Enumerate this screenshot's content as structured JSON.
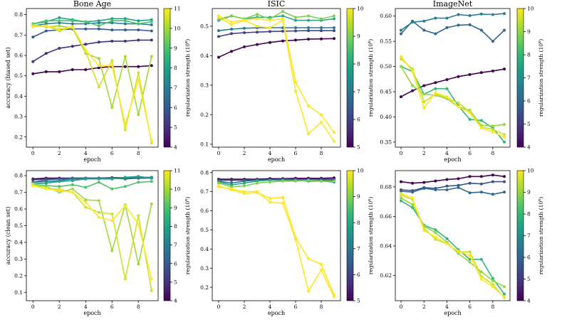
{
  "colormap": [
    "#440154",
    "#482878",
    "#3e4989",
    "#31688e",
    "#26828e",
    "#1f9e89",
    "#35b779",
    "#6ece58",
    "#b5de2b",
    "#fde725"
  ],
  "chart_data": [
    {
      "type": "line",
      "title": "Bone Age",
      "xlabel": "epoch",
      "ylabel": "accuracy (biased set)",
      "ylim": [
        0.15,
        0.83
      ],
      "yticks": [
        0.2,
        0.3,
        0.4,
        0.5,
        0.6,
        0.7,
        0.8
      ],
      "ytick_labels": [
        "0.2",
        "0.3",
        "0.4",
        "0.5",
        "0.6",
        "0.7",
        "0.8"
      ],
      "xlim": [
        -0.5,
        9.5
      ],
      "xticks": [
        0,
        2,
        4,
        6,
        8
      ],
      "xtick_labels": [
        "0",
        "2",
        "4",
        "6",
        "8"
      ],
      "colorbar": {
        "label": "regularization strength (10^x)",
        "label_main": "regularization strength (10",
        "label_sup": "x",
        "range": [
          4,
          11
        ],
        "ticks": [
          4,
          5,
          6,
          7,
          8,
          9,
          10,
          11
        ],
        "tick_labels": [
          "4",
          "5",
          "6",
          "7",
          "8",
          "9",
          "10",
          "11"
        ]
      },
      "x": [
        0,
        1,
        2,
        3,
        4,
        5,
        6,
        7,
        8,
        9
      ],
      "series": [
        {
          "strength": 4,
          "values": [
            0.51,
            0.52,
            0.52,
            0.53,
            0.53,
            0.54,
            0.545,
            0.545,
            0.545,
            0.55
          ]
        },
        {
          "strength": 5,
          "values": [
            0.57,
            0.61,
            0.635,
            0.645,
            0.655,
            0.665,
            0.67,
            0.67,
            0.675,
            0.675
          ]
        },
        {
          "strength": 6,
          "values": [
            0.69,
            0.72,
            0.725,
            0.73,
            0.73,
            0.73,
            0.725,
            0.725,
            0.725,
            0.72
          ]
        },
        {
          "strength": 7,
          "values": [
            0.745,
            0.755,
            0.76,
            0.755,
            0.755,
            0.76,
            0.76,
            0.755,
            0.755,
            0.75
          ]
        },
        {
          "strength": 8,
          "values": [
            0.755,
            0.765,
            0.785,
            0.775,
            0.765,
            0.77,
            0.78,
            0.78,
            0.77,
            0.775
          ]
        },
        {
          "strength": 9,
          "values": [
            0.755,
            0.77,
            0.77,
            0.77,
            0.765,
            0.745,
            0.77,
            0.77,
            0.755,
            0.765
          ]
        },
        {
          "strength": 10,
          "values": [
            0.75,
            0.74,
            0.745,
            0.735,
            0.61,
            0.585,
            0.345,
            0.595,
            0.31,
            0.595
          ]
        },
        {
          "strength": 10.5,
          "values": [
            0.745,
            0.745,
            0.72,
            0.74,
            0.62,
            0.445,
            0.575,
            0.235,
            0.515,
            0.17
          ]
        },
        {
          "strength": 11,
          "values": [
            0.74,
            0.745,
            0.73,
            0.74,
            0.625,
            0.55,
            0.55,
            0.26,
            0.48,
            0.18
          ]
        }
      ]
    },
    {
      "type": "line",
      "title": "ISIC",
      "xlabel": "epoch",
      "ylabel": "",
      "ylim": [
        0.09,
        0.56
      ],
      "yticks": [
        0.1,
        0.2,
        0.3,
        0.4,
        0.5
      ],
      "ytick_labels": [
        "0.1",
        "0.2",
        "0.3",
        "0.4",
        "0.5"
      ],
      "xlim": [
        -0.5,
        9.5
      ],
      "xticks": [
        0,
        2,
        4,
        6,
        8
      ],
      "xtick_labels": [
        "0",
        "2",
        "4",
        "6",
        "8"
      ],
      "colorbar": {
        "label": "regularization strength (10^x)",
        "label_main": "regularization strength (10",
        "label_sup": "x",
        "range": [
          5,
          10
        ],
        "ticks": [
          5,
          6,
          7,
          8,
          9,
          10
        ],
        "tick_labels": [
          "5",
          "6",
          "7",
          "8",
          "9",
          "10"
        ]
      },
      "x": [
        0,
        1,
        2,
        3,
        4,
        5,
        6,
        7,
        8,
        9
      ],
      "series": [
        {
          "strength": 5,
          "values": [
            0.395,
            0.415,
            0.43,
            0.438,
            0.445,
            0.45,
            0.453,
            0.456,
            0.457,
            0.458
          ]
        },
        {
          "strength": 6,
          "values": [
            0.465,
            0.475,
            0.478,
            0.48,
            0.482,
            0.483,
            0.484,
            0.485,
            0.485,
            0.485
          ]
        },
        {
          "strength": 7,
          "values": [
            0.485,
            0.49,
            0.493,
            0.495,
            0.495,
            0.495,
            0.495,
            0.495,
            0.495,
            0.495
          ]
        },
        {
          "strength": 8,
          "values": [
            0.52,
            0.535,
            0.525,
            0.53,
            0.53,
            0.535,
            0.52,
            0.52,
            0.52,
            0.525
          ]
        },
        {
          "strength": 9,
          "values": [
            0.525,
            0.535,
            0.525,
            0.54,
            0.525,
            0.55,
            0.53,
            0.535,
            0.525,
            0.535
          ]
        },
        {
          "strength": 10,
          "values": [
            0.535,
            0.515,
            0.52,
            0.525,
            0.52,
            0.525,
            0.31,
            0.23,
            0.2,
            0.14
          ]
        },
        {
          "strength": 10,
          "values": [
            0.53,
            0.505,
            0.52,
            0.5,
            0.495,
            0.52,
            0.28,
            0.135,
            0.175,
            0.11
          ]
        }
      ]
    },
    {
      "type": "line",
      "title": "ImageNet",
      "xlabel": "epoch",
      "ylabel": "",
      "ylim": [
        0.34,
        0.615
      ],
      "yticks": [
        0.35,
        0.4,
        0.45,
        0.5,
        0.55,
        0.6
      ],
      "ytick_labels": [
        "0.35",
        "0.40",
        "0.45",
        "0.50",
        "0.55",
        "0.60"
      ],
      "xlim": [
        -0.5,
        9.5
      ],
      "xticks": [
        0,
        2,
        4,
        6,
        8
      ],
      "xtick_labels": [
        "0",
        "2",
        "4",
        "6",
        "8"
      ],
      "colorbar": {
        "label": "regularization strength (10^x)",
        "label_main": "regularization strength (10",
        "label_sup": "x",
        "range": [
          4,
          10
        ],
        "ticks": [
          4,
          5,
          6,
          7,
          8,
          9,
          10
        ],
        "tick_labels": [
          "4",
          "5",
          "6",
          "7",
          "8",
          "9",
          "10"
        ]
      },
      "x": [
        0,
        1,
        2,
        3,
        4,
        5,
        6,
        7,
        8,
        9
      ],
      "series": [
        {
          "strength": 4,
          "values": [
            0.44,
            0.452,
            0.462,
            0.468,
            0.474,
            0.48,
            0.484,
            0.488,
            0.491,
            0.495
          ]
        },
        {
          "strength": 6,
          "values": [
            0.565,
            0.59,
            0.572,
            0.565,
            0.577,
            0.582,
            0.583,
            0.572,
            0.55,
            0.572
          ]
        },
        {
          "strength": 6.5,
          "values": [
            0.572,
            0.588,
            0.59,
            0.596,
            0.596,
            0.603,
            0.601,
            0.604,
            0.603,
            0.605
          ]
        },
        {
          "strength": 8,
          "values": [
            0.5,
            0.49,
            0.445,
            0.456,
            0.456,
            0.422,
            0.395,
            0.393,
            0.378,
            0.35
          ]
        },
        {
          "strength": 9,
          "values": [
            0.5,
            0.462,
            0.445,
            0.443,
            0.436,
            0.42,
            0.413,
            0.383,
            0.382,
            0.385
          ]
        },
        {
          "strength": 9.5,
          "values": [
            0.515,
            0.495,
            0.43,
            0.445,
            0.438,
            0.428,
            0.41,
            0.38,
            0.375,
            0.365
          ]
        },
        {
          "strength": 10,
          "values": [
            0.52,
            0.49,
            0.418,
            0.448,
            0.44,
            0.42,
            0.408,
            0.378,
            0.37,
            0.36
          ]
        }
      ]
    },
    {
      "type": "line",
      "title": "",
      "xlabel": "epoch",
      "ylabel": "accuracy (clean set)",
      "ylim": [
        0.05,
        0.83
      ],
      "yticks": [
        0.1,
        0.2,
        0.3,
        0.4,
        0.5,
        0.6,
        0.7,
        0.8
      ],
      "ytick_labels": [
        "0.1",
        "0.2",
        "0.3",
        "0.4",
        "0.5",
        "0.6",
        "0.7",
        "0.8"
      ],
      "xlim": [
        -0.5,
        9.5
      ],
      "xticks": [
        0,
        2,
        4,
        6,
        8
      ],
      "xtick_labels": [
        "0",
        "2",
        "4",
        "6",
        "8"
      ],
      "colorbar": {
        "label": "regularization strength (10^x)",
        "label_main": "regularization strength (10",
        "label_sup": "x",
        "range": [
          4,
          11
        ],
        "ticks": [
          4,
          5,
          6,
          7,
          8,
          9,
          10,
          11
        ],
        "tick_labels": [
          "4",
          "5",
          "6",
          "7",
          "8",
          "9",
          "10",
          "11"
        ]
      },
      "x": [
        0,
        1,
        2,
        3,
        4,
        5,
        6,
        7,
        8,
        9
      ],
      "series": [
        {
          "strength": 4,
          "values": [
            0.78,
            0.785,
            0.785,
            0.785,
            0.785,
            0.785,
            0.788,
            0.788,
            0.788,
            0.788
          ]
        },
        {
          "strength": 5,
          "values": [
            0.775,
            0.78,
            0.78,
            0.782,
            0.782,
            0.785,
            0.785,
            0.785,
            0.785,
            0.787
          ]
        },
        {
          "strength": 6,
          "values": [
            0.76,
            0.775,
            0.78,
            0.785,
            0.785,
            0.785,
            0.785,
            0.78,
            0.785,
            0.785
          ]
        },
        {
          "strength": 7,
          "values": [
            0.76,
            0.765,
            0.77,
            0.78,
            0.78,
            0.782,
            0.785,
            0.785,
            0.79,
            0.79
          ]
        },
        {
          "strength": 8,
          "values": [
            0.75,
            0.755,
            0.765,
            0.77,
            0.78,
            0.78,
            0.78,
            0.79,
            0.795,
            0.785
          ]
        },
        {
          "strength": 9,
          "values": [
            0.745,
            0.74,
            0.735,
            0.745,
            0.73,
            0.76,
            0.72,
            0.735,
            0.76,
            0.765
          ]
        },
        {
          "strength": 10,
          "values": [
            0.745,
            0.735,
            0.7,
            0.72,
            0.655,
            0.65,
            0.35,
            0.625,
            0.27,
            0.63
          ]
        },
        {
          "strength": 10.5,
          "values": [
            0.75,
            0.72,
            0.72,
            0.7,
            0.61,
            0.58,
            0.57,
            0.18,
            0.56,
            0.11
          ]
        },
        {
          "strength": 11,
          "values": [
            0.74,
            0.72,
            0.71,
            0.7,
            0.64,
            0.55,
            0.53,
            0.62,
            0.51,
            0.18
          ]
        }
      ]
    },
    {
      "type": "line",
      "title": "",
      "xlabel": "epoch",
      "ylabel": "",
      "ylim": [
        0.13,
        0.81
      ],
      "yticks": [
        0.2,
        0.3,
        0.4,
        0.5,
        0.6,
        0.7,
        0.8
      ],
      "ytick_labels": [
        "0.2",
        "0.3",
        "0.4",
        "0.5",
        "0.6",
        "0.7",
        "0.8"
      ],
      "xlim": [
        -0.5,
        9.5
      ],
      "xticks": [
        0,
        2,
        4,
        6,
        8
      ],
      "xtick_labels": [
        "0",
        "2",
        "4",
        "6",
        "8"
      ],
      "colorbar": {
        "label": "regularization strength (10^x)",
        "label_main": "regularization strength (10",
        "label_sup": "x",
        "range": [
          5,
          10
        ],
        "ticks": [
          5,
          6,
          7,
          8,
          9,
          10
        ],
        "tick_labels": [
          "5",
          "6",
          "7",
          "8",
          "9",
          "10"
        ]
      },
      "x": [
        0,
        1,
        2,
        3,
        4,
        5,
        6,
        7,
        8,
        9
      ],
      "series": [
        {
          "strength": 5,
          "values": [
            0.765,
            0.765,
            0.765,
            0.765,
            0.768,
            0.768,
            0.77,
            0.77,
            0.77,
            0.772
          ]
        },
        {
          "strength": 6,
          "values": [
            0.76,
            0.76,
            0.76,
            0.762,
            0.762,
            0.765,
            0.765,
            0.765,
            0.765,
            0.765
          ]
        },
        {
          "strength": 7,
          "values": [
            0.755,
            0.745,
            0.755,
            0.76,
            0.76,
            0.76,
            0.76,
            0.76,
            0.76,
            0.76
          ]
        },
        {
          "strength": 8,
          "values": [
            0.75,
            0.735,
            0.745,
            0.755,
            0.76,
            0.76,
            0.76,
            0.755,
            0.755,
            0.75
          ]
        },
        {
          "strength": 9,
          "values": [
            0.745,
            0.725,
            0.73,
            0.745,
            0.75,
            0.755,
            0.755,
            0.76,
            0.755,
            0.755
          ]
        },
        {
          "strength": 10,
          "values": [
            0.73,
            0.71,
            0.69,
            0.695,
            0.665,
            0.67,
            0.46,
            0.35,
            0.32,
            0.16
          ]
        },
        {
          "strength": 10,
          "values": [
            0.725,
            0.715,
            0.7,
            0.7,
            0.645,
            0.64,
            0.45,
            0.18,
            0.29,
            0.15
          ]
        }
      ]
    },
    {
      "type": "line",
      "title": "",
      "xlabel": "epoch",
      "ylabel": "",
      "ylim": [
        0.603,
        0.691
      ],
      "yticks": [
        0.62,
        0.64,
        0.66,
        0.68
      ],
      "ytick_labels": [
        "0.62",
        "0.64",
        "0.66",
        "0.68"
      ],
      "xlim": [
        -0.5,
        9.5
      ],
      "xticks": [
        0,
        2,
        4,
        6,
        8
      ],
      "xtick_labels": [
        "0",
        "2",
        "4",
        "6",
        "8"
      ],
      "colorbar": {
        "label": "regularization strength (10^x)",
        "label_main": "regularization strength (10",
        "label_sup": "x",
        "range": [
          4,
          10
        ],
        "ticks": [
          4,
          5,
          6,
          7,
          8,
          9,
          10
        ],
        "tick_labels": [
          "4",
          "5",
          "6",
          "7",
          "8",
          "9",
          "10"
        ]
      },
      "x": [
        0,
        1,
        2,
        3,
        4,
        5,
        6,
        7,
        8,
        9
      ],
      "series": [
        {
          "strength": 4,
          "values": [
            0.6835,
            0.6825,
            0.683,
            0.684,
            0.685,
            0.6855,
            0.687,
            0.687,
            0.688,
            0.687
          ]
        },
        {
          "strength": 5.5,
          "values": [
            0.678,
            0.6775,
            0.6795,
            0.679,
            0.6805,
            0.681,
            0.6825,
            0.682,
            0.6835,
            0.6835
          ]
        },
        {
          "strength": 6,
          "values": [
            0.677,
            0.6765,
            0.679,
            0.678,
            0.678,
            0.6795,
            0.676,
            0.6765,
            0.675,
            0.6765
          ]
        },
        {
          "strength": 8,
          "values": [
            0.6705,
            0.666,
            0.654,
            0.651,
            0.645,
            0.6375,
            0.631,
            0.631,
            0.618,
            0.6075
          ]
        },
        {
          "strength": 9,
          "values": [
            0.6725,
            0.668,
            0.6535,
            0.649,
            0.6425,
            0.635,
            0.629,
            0.6225,
            0.6165,
            0.6125
          ]
        },
        {
          "strength": 9.5,
          "values": [
            0.6745,
            0.6715,
            0.652,
            0.6445,
            0.6415,
            0.636,
            0.636,
            0.6195,
            0.614,
            0.605
          ]
        },
        {
          "strength": 10,
          "values": [
            0.6755,
            0.6725,
            0.6505,
            0.646,
            0.6415,
            0.6365,
            0.6335,
            0.6175,
            0.6125,
            0.6055
          ]
        }
      ]
    }
  ]
}
